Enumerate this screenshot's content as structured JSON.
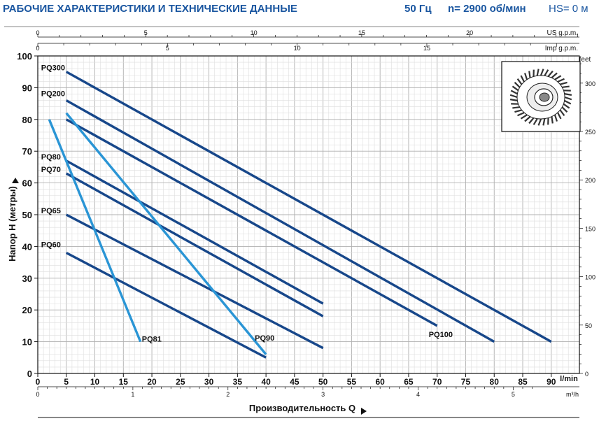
{
  "header": {
    "title": "РАБОЧИЕ ХАРАКТЕРИСТИКИ И ТЕХНИЧЕСКИЕ ДАННЫЕ",
    "freq": "50 Гц",
    "speed": "n= 2900 об/мин",
    "hs": "HS= 0 м"
  },
  "colors": {
    "dark": "#17478a",
    "light": "#2a95d5",
    "title": "#1a56a0",
    "grid": "#c8c8c8"
  },
  "icons": {
    "impeller": "impeller-icon",
    "arrow": "triangle-arrow-icon"
  },
  "chart_data": {
    "type": "line",
    "x": {
      "unit": "l/min",
      "range": [
        0,
        92
      ],
      "ticks": [
        0,
        5,
        10,
        15,
        20,
        25,
        30,
        35,
        40,
        45,
        50,
        55,
        60,
        65,
        70,
        75,
        80,
        85,
        90
      ],
      "label": "Производительность Q"
    },
    "y": {
      "unit": "",
      "range": [
        0,
        100
      ],
      "ticks": [
        0,
        10,
        20,
        30,
        40,
        50,
        60,
        70,
        80,
        90,
        100
      ],
      "label": "Напор H (метры)"
    },
    "axis_us": {
      "unit": "US g.p.m.",
      "ticks": [
        0,
        5,
        10,
        15,
        20
      ]
    },
    "axis_imp": {
      "unit": "Imp g.p.m.",
      "ticks": [
        0,
        5,
        10,
        15
      ]
    },
    "axis_m3h": {
      "unit": "m³/h",
      "ticks": [
        0,
        1,
        2,
        3,
        4,
        5
      ]
    },
    "axis_feet": {
      "unit": "feet",
      "ticks": [
        0,
        50,
        100,
        150,
        200,
        250,
        300
      ]
    },
    "grid": true,
    "series": [
      {
        "name": "PQ300",
        "color": "dark",
        "points": [
          [
            5,
            95
          ],
          [
            90,
            10
          ]
        ]
      },
      {
        "name": "PQ200",
        "color": "dark",
        "points": [
          [
            5,
            86
          ],
          [
            80,
            10
          ]
        ]
      },
      {
        "name": "PQ100",
        "color": "dark",
        "points": [
          [
            5,
            80
          ],
          [
            70,
            15
          ]
        ]
      },
      {
        "name": "PQ80",
        "color": "dark",
        "points": [
          [
            5,
            67
          ],
          [
            50,
            22
          ]
        ]
      },
      {
        "name": "PQ70",
        "color": "dark",
        "points": [
          [
            5,
            63
          ],
          [
            50,
            18
          ]
        ]
      },
      {
        "name": "PQ65",
        "color": "dark",
        "points": [
          [
            5,
            50
          ],
          [
            50,
            8
          ]
        ]
      },
      {
        "name": "PQ60",
        "color": "dark",
        "points": [
          [
            5,
            38
          ],
          [
            40,
            5
          ]
        ]
      },
      {
        "name": "PQ81",
        "color": "light",
        "points": [
          [
            2,
            80
          ],
          [
            18,
            10
          ]
        ]
      },
      {
        "name": "PQ90",
        "color": "light",
        "points": [
          [
            5,
            82
          ],
          [
            40,
            6
          ]
        ]
      }
    ]
  }
}
